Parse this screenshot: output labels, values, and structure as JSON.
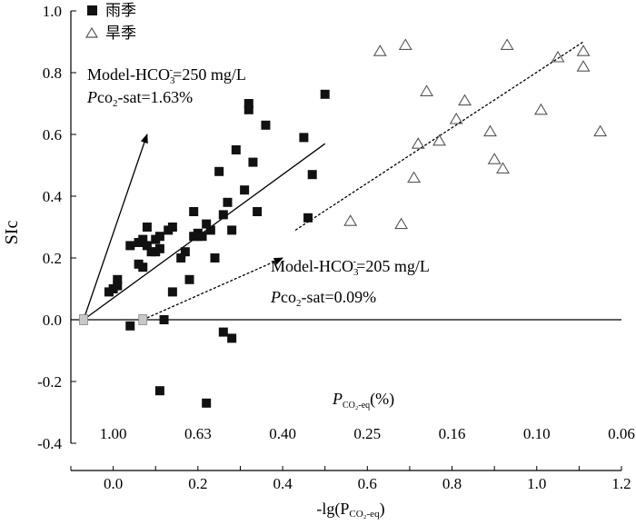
{
  "chart_data": {
    "type": "scatter",
    "xlabel": "-lg(P",
    "xlabel_sub": "CO₂-eq",
    "xlabel_end": ")",
    "ylabel": "SIc",
    "xlim": [
      -0.1,
      1.2
    ],
    "ylim": [
      -0.4,
      1.0
    ],
    "x_ticks": [
      0.0,
      0.2,
      0.4,
      0.6,
      0.8,
      1.0,
      1.2
    ],
    "x_tick_labels": [
      "0.0",
      "0.2",
      "0.4",
      "0.6",
      "0.8",
      "1.0",
      "1.2"
    ],
    "y_ticks": [
      1.0,
      0.8,
      0.6,
      0.4,
      0.2,
      0.0,
      -0.2,
      -0.4
    ],
    "y_tick_labels": [
      "1.0",
      "0.8",
      "0.6",
      "0.4",
      "0.2",
      "0.0",
      "-0.2",
      "-0.4"
    ],
    "secondary_axis": {
      "label": "P",
      "label_sub": "CO₂-eq",
      "label_end": "(%)",
      "positions": [
        0.0,
        0.2,
        0.4,
        0.6,
        0.8,
        1.0,
        1.2
      ],
      "tick_labels": [
        "1.00",
        "0.63",
        "0.40",
        "0.25",
        "0.16",
        "0.10",
        "0.06"
      ]
    },
    "legend_position": "top-left",
    "series": [
      {
        "name": "雨季",
        "marker": "filled-square",
        "color": "#111111",
        "points": [
          [
            -0.01,
            0.09
          ],
          [
            0.0,
            0.1
          ],
          [
            0.01,
            0.13
          ],
          [
            0.01,
            0.11
          ],
          [
            0.04,
            0.24
          ],
          [
            0.04,
            -0.02
          ],
          [
            0.06,
            0.25
          ],
          [
            0.06,
            0.18
          ],
          [
            0.07,
            0.17
          ],
          [
            0.07,
            0.26
          ],
          [
            0.08,
            0.3
          ],
          [
            0.08,
            0.24
          ],
          [
            0.09,
            0.22
          ],
          [
            0.1,
            0.22
          ],
          [
            0.1,
            0.26
          ],
          [
            0.11,
            0.23
          ],
          [
            0.11,
            0.27
          ],
          [
            0.11,
            -0.23
          ],
          [
            0.12,
            0.0
          ],
          [
            0.13,
            0.29
          ],
          [
            0.14,
            0.3
          ],
          [
            0.14,
            0.09
          ],
          [
            0.16,
            0.2
          ],
          [
            0.17,
            0.22
          ],
          [
            0.18,
            0.13
          ],
          [
            0.19,
            0.27
          ],
          [
            0.19,
            0.35
          ],
          [
            0.2,
            0.27
          ],
          [
            0.2,
            0.28
          ],
          [
            0.21,
            0.27
          ],
          [
            0.22,
            0.31
          ],
          [
            0.22,
            -0.27
          ],
          [
            0.23,
            0.29
          ],
          [
            0.24,
            0.2
          ],
          [
            0.25,
            0.48
          ],
          [
            0.26,
            -0.04
          ],
          [
            0.26,
            0.34
          ],
          [
            0.27,
            0.38
          ],
          [
            0.28,
            0.29
          ],
          [
            0.28,
            -0.06
          ],
          [
            0.29,
            0.55
          ],
          [
            0.31,
            0.42
          ],
          [
            0.32,
            0.7
          ],
          [
            0.32,
            0.68
          ],
          [
            0.33,
            0.51
          ],
          [
            0.34,
            0.35
          ],
          [
            0.36,
            0.63
          ],
          [
            0.45,
            0.59
          ],
          [
            0.46,
            0.33
          ],
          [
            0.47,
            0.47
          ],
          [
            0.5,
            0.73
          ]
        ]
      },
      {
        "name": "旱季",
        "marker": "hollow-triangle",
        "color": "#555555",
        "points": [
          [
            0.56,
            0.32
          ],
          [
            0.63,
            0.87
          ],
          [
            0.68,
            0.31
          ],
          [
            0.69,
            0.89
          ],
          [
            0.71,
            0.46
          ],
          [
            0.72,
            0.57
          ],
          [
            0.74,
            0.74
          ],
          [
            0.77,
            0.58
          ],
          [
            0.81,
            0.65
          ],
          [
            0.83,
            0.71
          ],
          [
            0.89,
            0.61
          ],
          [
            0.9,
            0.52
          ],
          [
            0.92,
            0.49
          ],
          [
            0.93,
            0.89
          ],
          [
            1.01,
            0.68
          ],
          [
            1.05,
            0.85
          ],
          [
            1.11,
            0.82
          ],
          [
            1.11,
            0.87
          ],
          [
            1.15,
            0.61
          ]
        ]
      }
    ],
    "reference_lines": [
      {
        "id": "zero-line",
        "style": "solid",
        "from": [
          -0.1,
          0.0
        ],
        "to": [
          1.2,
          0.0
        ]
      },
      {
        "id": "wet-trend",
        "style": "solid",
        "from": [
          -0.07,
          0.0
        ],
        "to": [
          0.5,
          0.57
        ]
      },
      {
        "id": "dry-trend",
        "style": "dashed",
        "from": [
          0.43,
          0.29
        ],
        "to": [
          1.11,
          0.9
        ]
      }
    ],
    "arrows": [
      {
        "id": "arrow-250",
        "style": "solid",
        "from": [
          -0.07,
          0.0
        ],
        "to": [
          0.08,
          0.6
        ]
      },
      {
        "id": "arrow-205",
        "style": "dashed",
        "from": [
          0.07,
          0.0
        ],
        "to": [
          0.4,
          0.2
        ]
      }
    ],
    "origin_markers": [
      {
        "id": "origin-marker-250",
        "point": [
          -0.07,
          0.0
        ]
      },
      {
        "id": "origin-marker-205",
        "point": [
          0.07,
          0.0
        ]
      }
    ],
    "annotations": {
      "model_250_line1": "Model-HCO",
      "model_250_sub": "3",
      "model_250_sup": "-",
      "model_250_value": "=250 mg/L",
      "pco2_250_italic": "P",
      "pco2_250_co": "co",
      "pco2_250_sub": "2",
      "pco2_250_value": "-sat=1.63%",
      "model_205_line1": "Model-HCO",
      "model_205_sub": "3",
      "model_205_sup": "-",
      "model_205_value": "=205 mg/L",
      "pco2_205_italic": "P",
      "pco2_205_co": "co",
      "pco2_205_sub": "2",
      "pco2_205_value": "-sat=0.09%"
    },
    "colors": {
      "axis": "#000000",
      "wet_marker": "#111111",
      "dry_marker": "#555555",
      "origin_marker": "#c8c8c8"
    }
  }
}
